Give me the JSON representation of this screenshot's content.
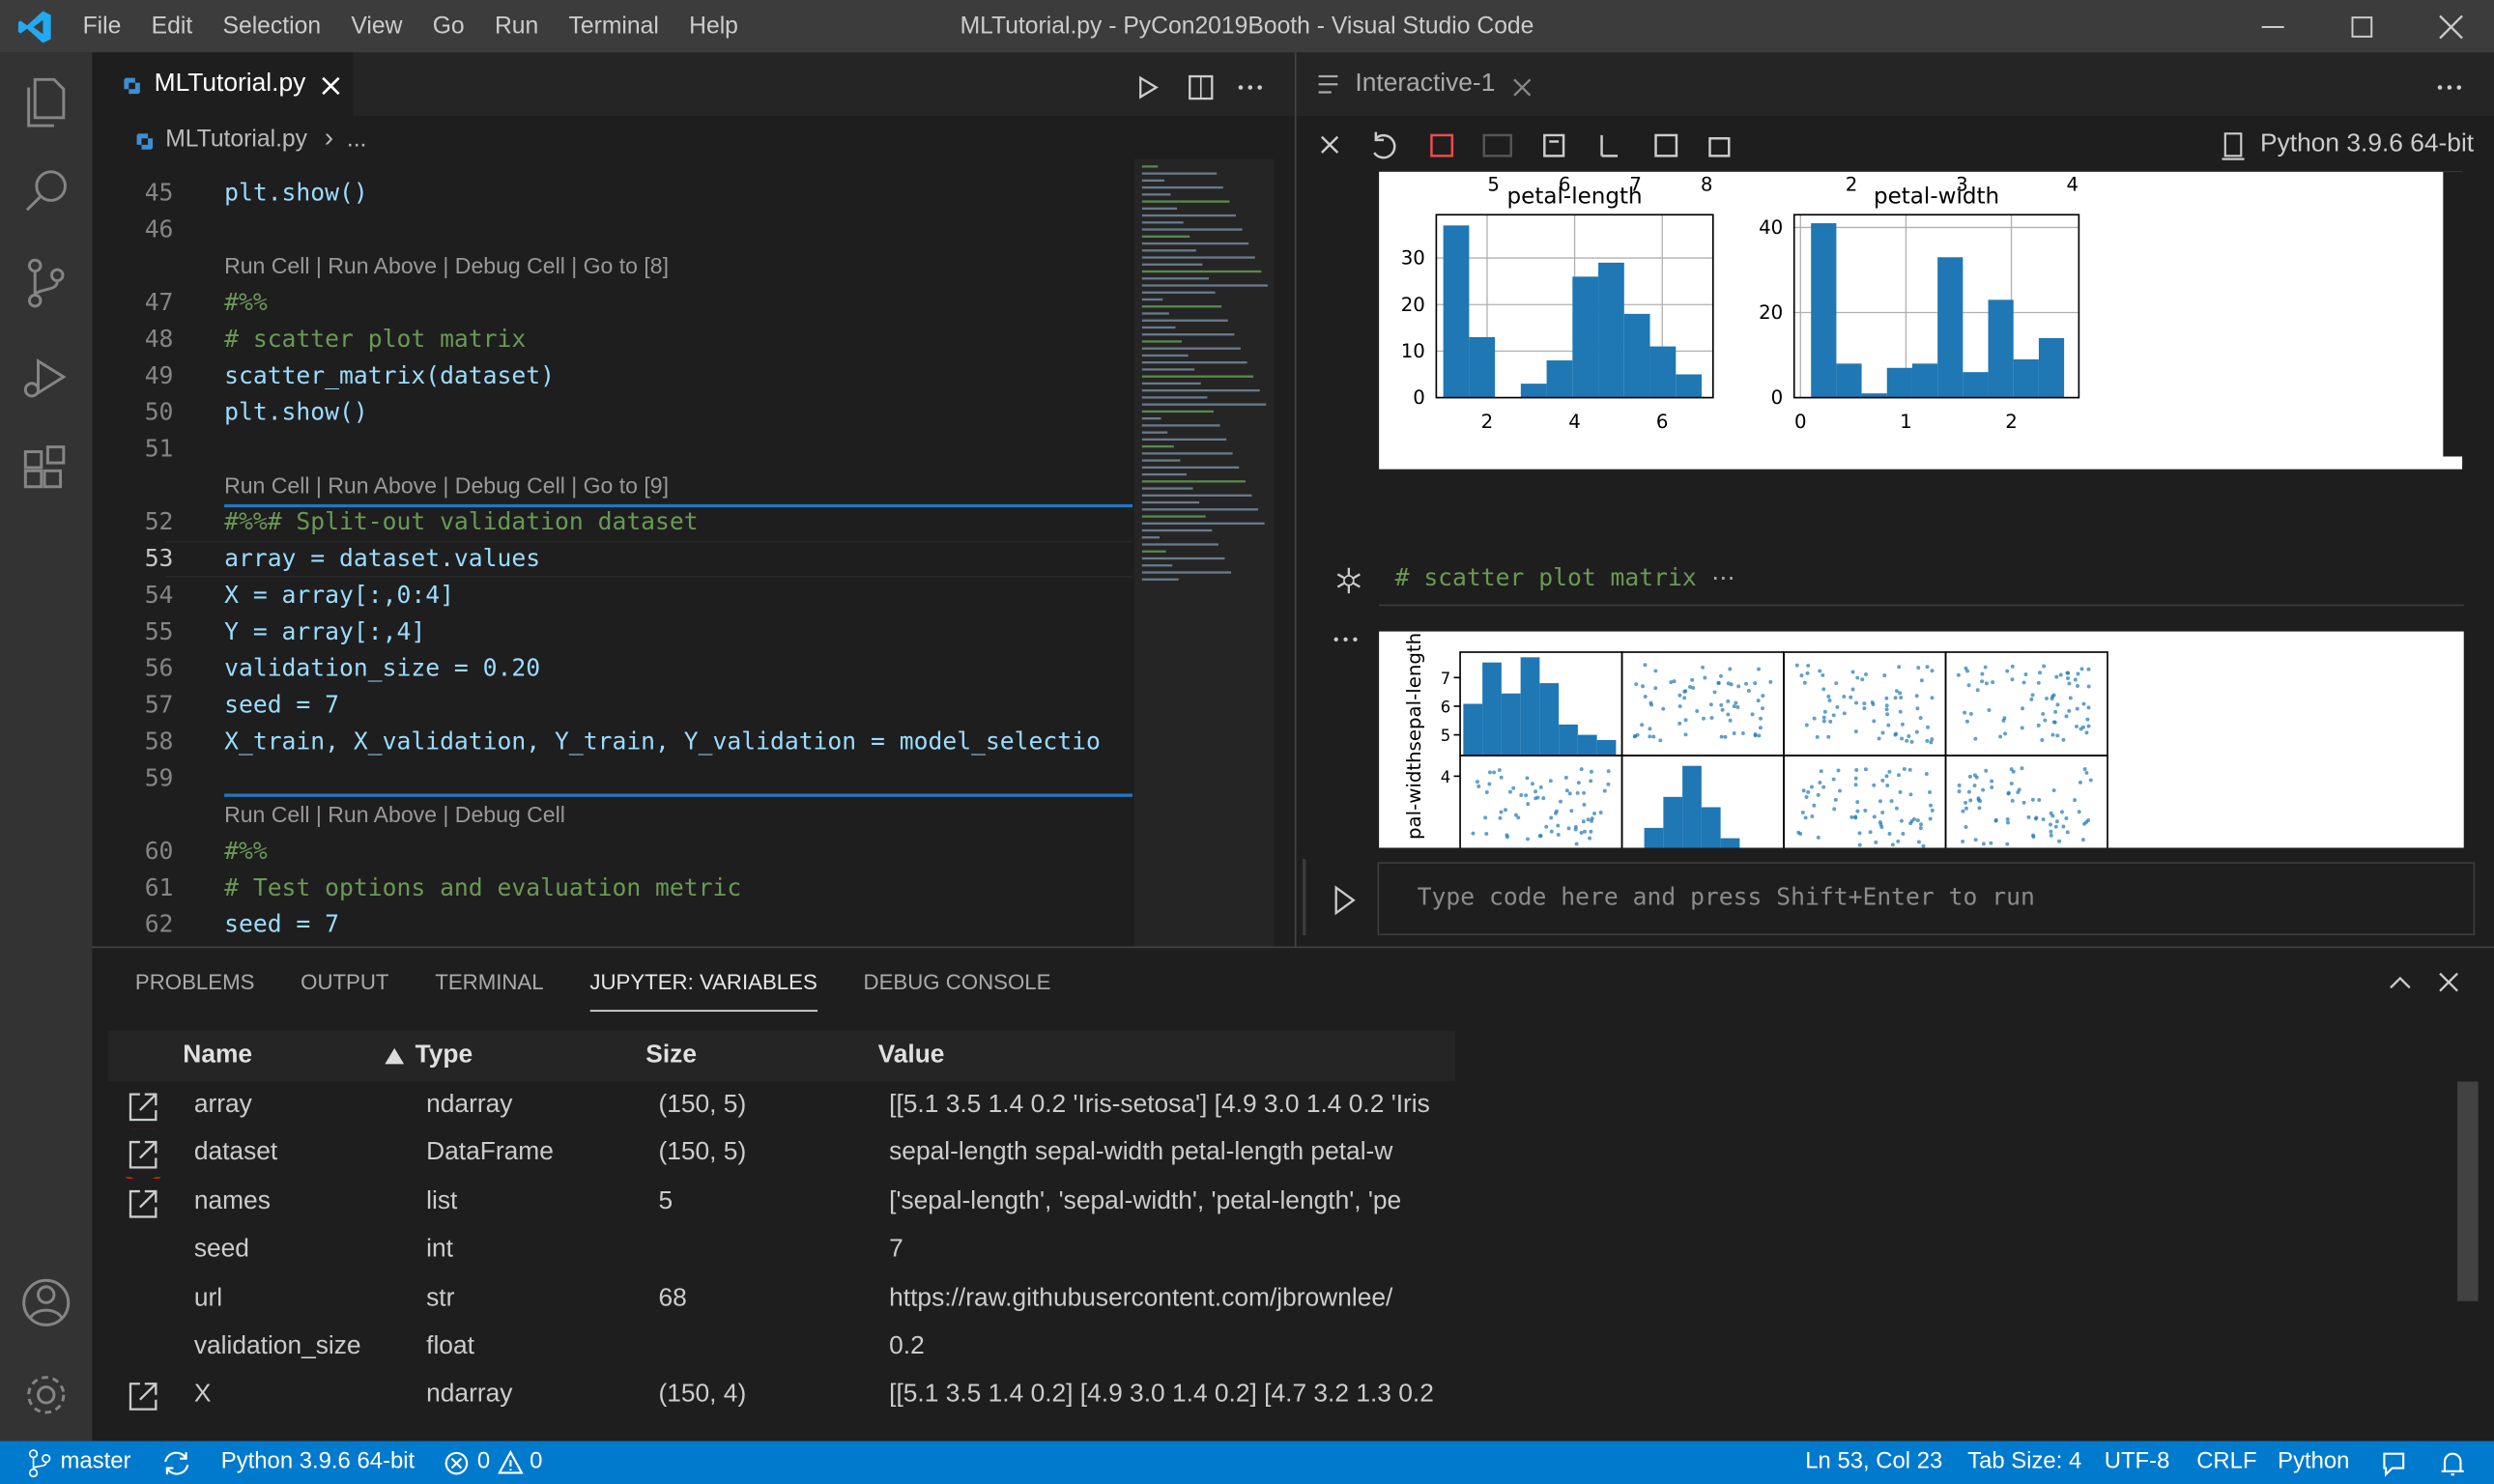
{
  "title_bar": {
    "menu": [
      "File",
      "Edit",
      "Selection",
      "View",
      "Go",
      "Run",
      "Terminal",
      "Help"
    ],
    "title": "MLTutorial.py - PyCon2019Booth - Visual Studio Code"
  },
  "editor": {
    "tab": "MLTutorial.py",
    "breadcrumb": [
      "MLTutorial.py",
      "..."
    ],
    "lines": [
      {
        "n": "45",
        "text": "plt.show()"
      },
      {
        "n": "46"
      },
      {
        "lens": "Run Cell | Run Above | Debug Cell | Go to [8]"
      },
      {
        "n": "47",
        "text": "#%%"
      },
      {
        "n": "48",
        "text": "# scatter plot matrix"
      },
      {
        "n": "49",
        "text": "scatter_matrix(dataset)"
      },
      {
        "n": "50",
        "text": "plt.show()"
      },
      {
        "n": "51"
      },
      {
        "lens": "Run Cell | Run Above | Debug Cell | Go to [9]"
      },
      {
        "n": "52",
        "text": "#%%# Split-out validation dataset"
      },
      {
        "n": "53",
        "text": "array = dataset.values"
      },
      {
        "n": "54",
        "text": "X = array[:,0:4]"
      },
      {
        "n": "55",
        "text": "Y = array[:,4]"
      },
      {
        "n": "56",
        "text": "validation_size = 0.20"
      },
      {
        "n": "57",
        "text": "seed = 7"
      },
      {
        "n": "58",
        "text": "X_train, X_validation, Y_train, Y_validation = model_selectio"
      },
      {
        "n": "59"
      },
      {
        "lens": "Run Cell | Run Above | Debug Cell"
      },
      {
        "n": "60",
        "text": "#%%"
      },
      {
        "n": "61",
        "text": "# Test options and evaluation metric"
      },
      {
        "n": "62",
        "text": "seed = 7"
      }
    ]
  },
  "interactive": {
    "tab": "Interactive-1",
    "kernel": "Python 3.9.6 64-bit",
    "plots": [
      {
        "type": "histogram",
        "title": "petal-length",
        "above_labels": [
          "5",
          "6",
          "7",
          "8"
        ],
        "bins": [
          1.0,
          1.59,
          2.18,
          2.77,
          3.36,
          3.95,
          4.54,
          5.13,
          5.72,
          6.31,
          6.9
        ],
        "values": [
          37,
          13,
          0,
          3,
          8,
          26,
          29,
          18,
          11,
          5
        ],
        "xlim": [
          0.84,
          7.16
        ],
        "ylim": [
          0,
          39.3
        ],
        "xticks": [
          2,
          4,
          6
        ],
        "yticks": [
          0,
          10,
          20,
          30
        ],
        "color": "#1f77b4",
        "grid": true
      },
      {
        "type": "histogram",
        "title": "petal-width",
        "above_labels": [
          "2",
          "3",
          "4"
        ],
        "bins": [
          0.1,
          0.34,
          0.58,
          0.82,
          1.06,
          1.3,
          1.54,
          1.78,
          2.02,
          2.26,
          2.5
        ],
        "values": [
          41,
          8,
          1,
          7,
          8,
          33,
          6,
          23,
          9,
          14
        ],
        "xlim": [
          -0.06,
          2.64
        ],
        "ylim": [
          0,
          43
        ],
        "xticks": [
          0,
          1,
          2
        ],
        "yticks": [
          0,
          20,
          40
        ],
        "color": "#1f77b4",
        "grid": true
      }
    ],
    "cell_code": "# scatter plot matrix",
    "collapsed_marker": "⋯",
    "scatter_matrix": {
      "row_labels": [
        "sepal-length",
        "pal-width"
      ],
      "row_ticks": [
        [
          7,
          6,
          5
        ],
        [
          4
        ]
      ]
    },
    "input_placeholder": "Type code here and press Shift+Enter to run"
  },
  "panel": {
    "tabs": [
      "PROBLEMS",
      "OUTPUT",
      "TERMINAL",
      "JUPYTER: VARIABLES",
      "DEBUG CONSOLE"
    ],
    "active_tab": 3,
    "columns": [
      "Name",
      "Type",
      "Size",
      "Value"
    ],
    "rows": [
      {
        "viewer": true,
        "name": "array",
        "type": "ndarray",
        "size": "(150, 5)",
        "value": "[[5.1 3.5 1.4 0.2 'Iris-setosa'] [4.9 3.0 1.4 0.2 'Iris"
      },
      {
        "viewer": true,
        "name": "dataset",
        "type": "DataFrame",
        "size": "(150, 5)",
        "value": "sepal-length sepal-width petal-length petal-w"
      },
      {
        "viewer": true,
        "name": "names",
        "type": "list",
        "size": "5",
        "value": "['sepal-length', 'sepal-width', 'petal-length', 'pe"
      },
      {
        "viewer": false,
        "name": "seed",
        "type": "int",
        "value": "7"
      },
      {
        "viewer": false,
        "name": "url",
        "type": "str",
        "size": "68",
        "value": "https://raw.githubusercontent.com/jbrownlee/"
      },
      {
        "viewer": false,
        "name": "validation_size",
        "type": "float",
        "value": "0.2"
      },
      {
        "viewer": true,
        "name": "X",
        "type": "ndarray",
        "size": "(150, 4)",
        "value": "[[5.1 3.5 1.4 0.2] [4.9 3.0 1.4 0.2] [4.7 3.2 1.3 0.2"
      }
    ]
  },
  "status_bar": {
    "branch": "master",
    "interpreter": "Python 3.9.6 64-bit",
    "errors": "0",
    "warnings": "0",
    "position": "Ln 53, Col 23",
    "tab_size": "Tab Size: 4",
    "encoding": "UTF-8",
    "eol": "CRLF",
    "language": "Python"
  }
}
